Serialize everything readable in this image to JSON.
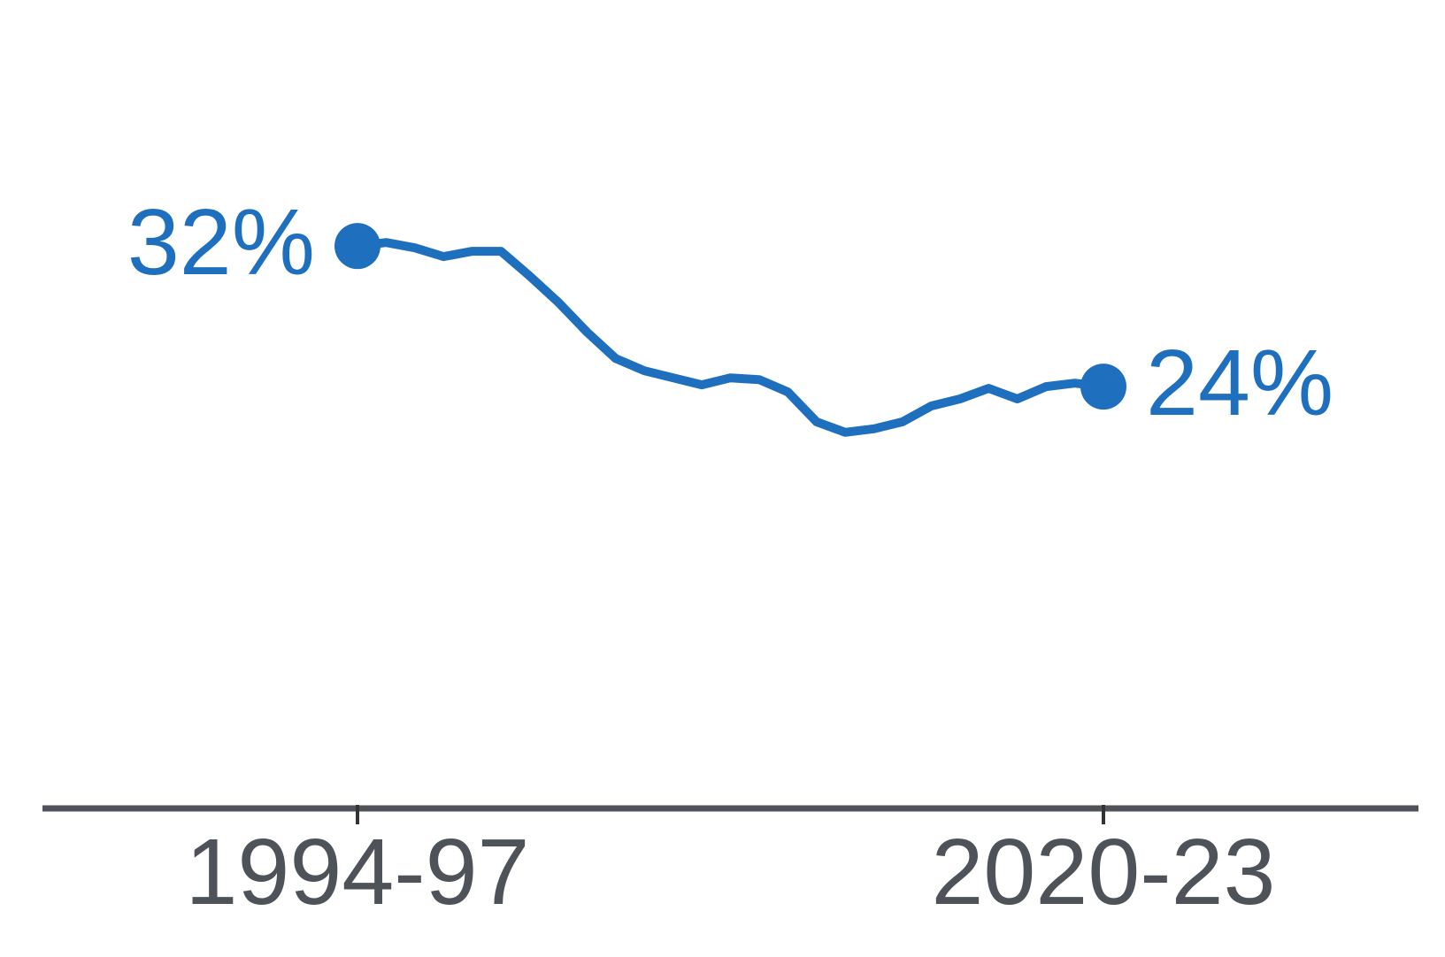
{
  "chart_data": {
    "type": "line",
    "title": "",
    "xlabel": "",
    "ylabel": "",
    "ylim": [
      0,
      46
    ],
    "grid": false,
    "legend": "none",
    "x_tick_labels": [
      {
        "label": "1994-97",
        "index": 0
      },
      {
        "label": "2020-23",
        "index": 26
      }
    ],
    "series": [
      {
        "color": "#1f6fbf",
        "x": [
          "1994-97",
          "1995-98",
          "1996-99",
          "1997-00",
          "1998-01",
          "1999-02",
          "2000-03",
          "2001-04",
          "2002-05",
          "2003-06",
          "2004-07",
          "2005-08",
          "2006-09",
          "2007-10",
          "2008-11",
          "2009-12",
          "2010-13",
          "2011-14",
          "2012-15",
          "2013-16",
          "2014-17",
          "2015-18",
          "2016-19",
          "2017-20",
          "2018-21",
          "2019-22",
          "2020-23"
        ],
        "values": [
          32.0,
          32.2,
          31.9,
          31.4,
          31.7,
          31.7,
          30.3,
          28.8,
          27.1,
          25.6,
          24.9,
          24.5,
          24.1,
          24.5,
          24.4,
          23.7,
          22.0,
          21.4,
          21.6,
          22.0,
          22.9,
          23.3,
          23.9,
          23.3,
          24.0,
          24.2,
          24.0
        ],
        "start_label": "32%",
        "end_label": "24%"
      }
    ],
    "axis_color": "#4d5358",
    "tick_label_color": "#4d5358"
  }
}
